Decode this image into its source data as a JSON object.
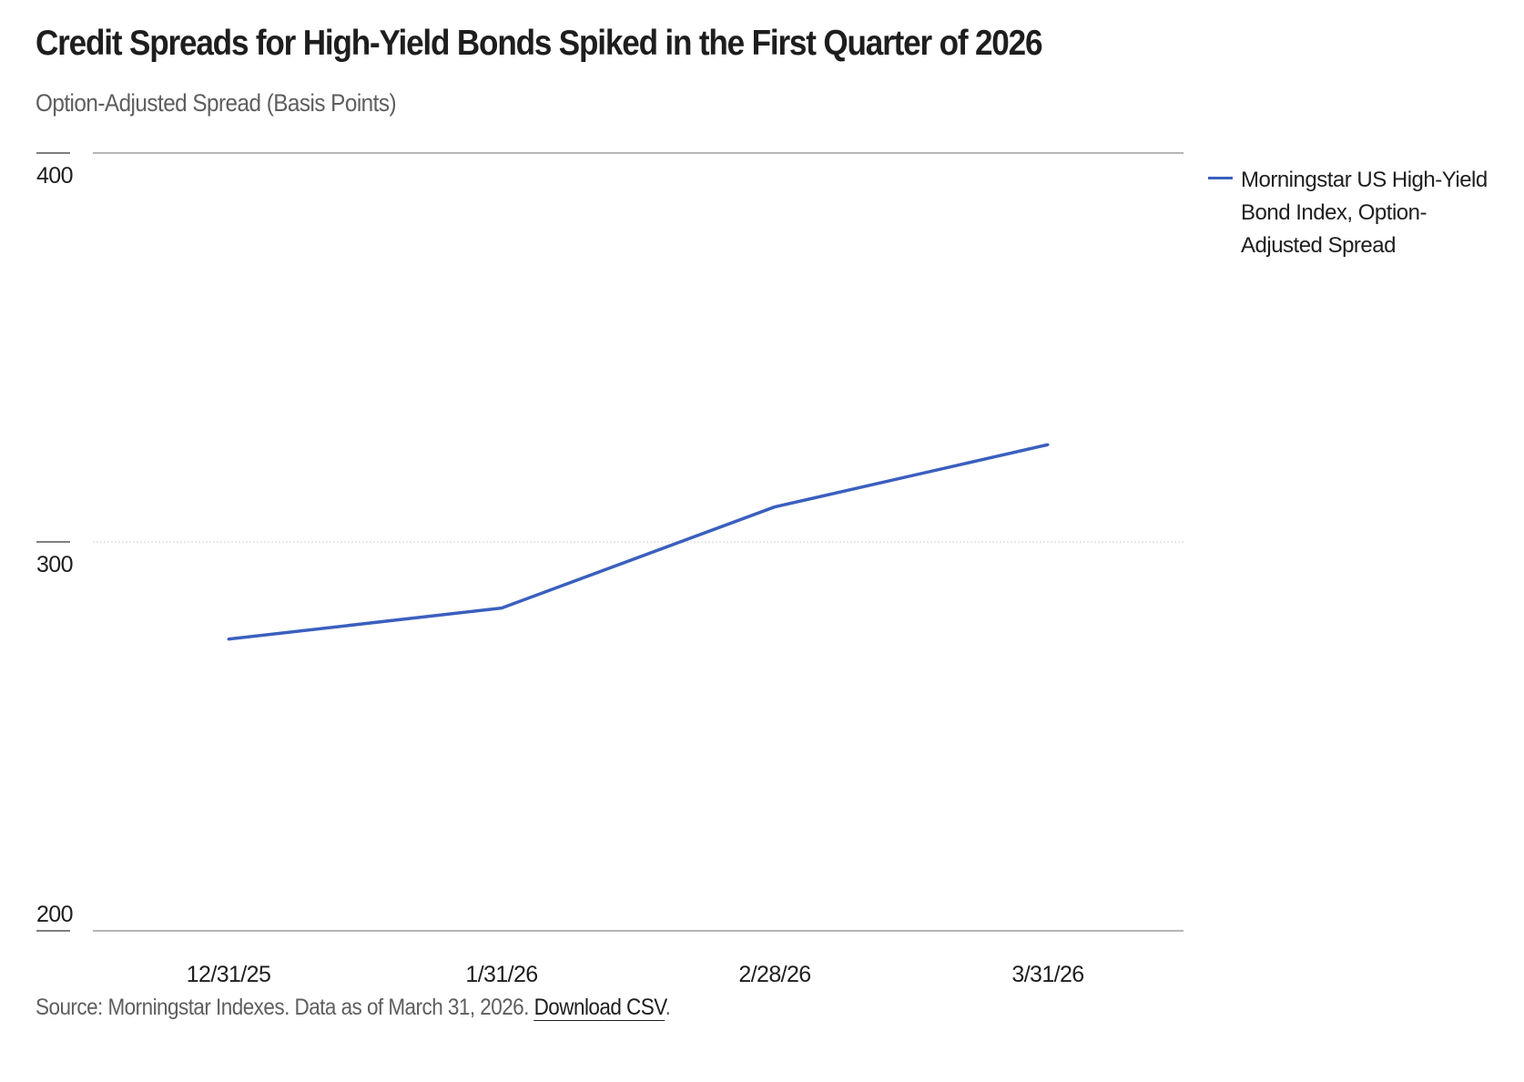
{
  "header": {
    "title": "Credit Spreads for High-Yield Bonds Spiked in the First Quarter of 2026",
    "subtitle": "Option-Adjusted Spread (Basis Points)"
  },
  "footer": {
    "source_text": "Source: Morningstar Indexes. Data as of March 31, 2026.",
    "download_label": "Download CSV",
    "trailing": "."
  },
  "chart_data": {
    "type": "line",
    "title": "Credit Spreads for High-Yield Bonds Spiked in the First Quarter of 2026",
    "subtitle": "Option-Adjusted Spread (Basis Points)",
    "categories": [
      "12/31/25",
      "1/31/26",
      "2/28/26",
      "3/31/26"
    ],
    "series": [
      {
        "name": "Morningstar US High-Yield Bond Index, Option-Adjusted Spread",
        "values": [
          275,
          283,
          309,
          325
        ],
        "color": "#3a5fbe"
      }
    ],
    "ylim": [
      200,
      400
    ],
    "yticks": [
      "200",
      "300",
      "400"
    ],
    "grid": true,
    "legend": "right"
  }
}
